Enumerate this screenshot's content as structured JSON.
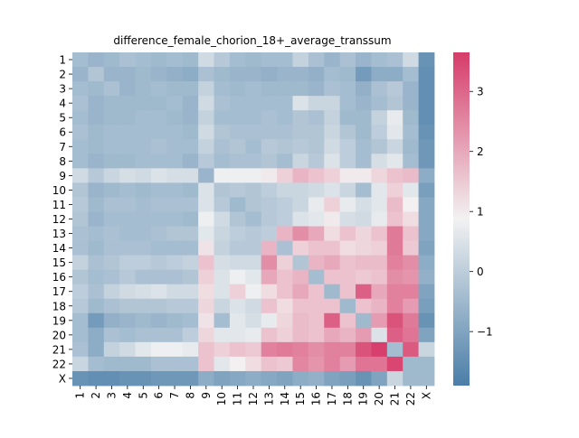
{
  "chart_data": {
    "type": "heatmap",
    "title": "difference_female_chorion_18+_average_transsum",
    "xlabel": "",
    "ylabel": "",
    "labels": [
      "1",
      "2",
      "3",
      "4",
      "5",
      "6",
      "7",
      "8",
      "9",
      "10",
      "11",
      "12",
      "13",
      "14",
      "15",
      "16",
      "17",
      "18",
      "19",
      "20",
      "21",
      "22",
      "X"
    ],
    "colorbar": {
      "min": -1.9,
      "max": 3.65,
      "ticks": [
        -1,
        0,
        1,
        2,
        3
      ],
      "tick_labels": [
        "−1",
        "0",
        "1",
        "2",
        "3"
      ],
      "colormap": "diverging",
      "low_color": "#4a7ea8",
      "mid_color": "#f2f2f2",
      "high_color": "#d63c6a"
    },
    "matrix": [
      [
        -0.4,
        -0.6,
        -0.5,
        -0.3,
        -0.4,
        -0.5,
        -0.4,
        -0.5,
        0.3,
        -0.1,
        -0.4,
        -0.5,
        -0.4,
        -0.4,
        0.1,
        -0.3,
        -0.6,
        -0.3,
        -0.6,
        -0.4,
        -0.3,
        0.3,
        -1.4
      ],
      [
        -0.6,
        -0.2,
        -0.6,
        -0.6,
        -0.5,
        -0.6,
        -0.7,
        -0.8,
        -0.3,
        -0.5,
        -0.6,
        -0.6,
        -0.7,
        -0.6,
        -0.6,
        -0.7,
        -0.4,
        -0.5,
        -1.2,
        -0.8,
        -0.8,
        -0.4,
        -1.5
      ],
      [
        -0.4,
        -0.5,
        -0.3,
        -0.6,
        -0.5,
        -0.4,
        -0.5,
        -0.5,
        0.1,
        -0.4,
        -0.5,
        -0.4,
        -0.5,
        -0.5,
        -0.5,
        -0.6,
        -0.3,
        -0.4,
        -0.7,
        -0.3,
        -0.1,
        -0.6,
        -1.5
      ],
      [
        -0.3,
        -0.6,
        -0.5,
        -0.5,
        -0.5,
        -0.5,
        -0.4,
        -0.6,
        0.3,
        -0.3,
        -0.4,
        -0.4,
        -0.4,
        -0.4,
        0.5,
        0.2,
        0.2,
        -0.4,
        -0.6,
        -0.4,
        -0.2,
        -0.6,
        -1.5
      ],
      [
        -0.4,
        -0.6,
        -0.5,
        -0.5,
        -0.4,
        -0.4,
        -0.5,
        -0.6,
        0.1,
        -0.4,
        -0.4,
        -0.4,
        -0.3,
        -0.4,
        -0.2,
        -0.3,
        0.1,
        -0.5,
        -0.5,
        0.1,
        0.7,
        -0.5,
        -1.5
      ],
      [
        -0.3,
        -0.5,
        -0.4,
        -0.4,
        -0.4,
        -0.4,
        -0.4,
        -0.5,
        0.3,
        -0.2,
        -0.3,
        -0.3,
        -0.3,
        -0.3,
        -0.2,
        -0.2,
        0.2,
        -0.2,
        -0.5,
        0.0,
        0.6,
        -0.4,
        -1.4
      ],
      [
        -0.4,
        -0.5,
        -0.4,
        -0.4,
        -0.4,
        -0.3,
        -0.4,
        -0.4,
        0.1,
        -0.3,
        -0.2,
        -0.4,
        -0.1,
        -0.2,
        -0.1,
        -0.2,
        0.3,
        0.0,
        -0.4,
        -0.2,
        0.2,
        -0.5,
        -1.3
      ],
      [
        -0.4,
        -0.6,
        -0.5,
        -0.5,
        -0.4,
        -0.4,
        -0.4,
        -0.6,
        -0.1,
        -0.4,
        -0.3,
        -0.3,
        -0.2,
        -0.4,
        0.2,
        -0.1,
        0.5,
        0.0,
        -0.4,
        0.4,
        0.6,
        -0.4,
        -1.3
      ],
      [
        0.3,
        -0.1,
        0.2,
        0.4,
        0.3,
        0.5,
        0.4,
        0.4,
        -0.6,
        0.8,
        0.8,
        0.8,
        1.0,
        1.4,
        1.8,
        1.6,
        1.4,
        1.0,
        1.0,
        1.3,
        1.6,
        1.7,
        -0.8
      ],
      [
        -0.2,
        -0.6,
        -0.5,
        -0.4,
        -0.5,
        -0.4,
        -0.4,
        -0.5,
        0.5,
        -0.2,
        -0.1,
        -0.2,
        0.0,
        0.2,
        0.2,
        0.3,
        0.5,
        0.2,
        -0.4,
        0.6,
        1.4,
        0.6,
        -1.1
      ],
      [
        -0.1,
        -0.5,
        -0.3,
        -0.3,
        -0.4,
        -0.3,
        -0.3,
        -0.3,
        0.5,
        -0.1,
        -0.5,
        -0.2,
        -0.1,
        0.0,
        0.2,
        0.7,
        1.4,
        0.7,
        0.4,
        0.6,
        1.7,
        0.9,
        -0.9
      ],
      [
        -0.2,
        -0.6,
        -0.4,
        -0.4,
        -0.4,
        -0.4,
        -0.4,
        -0.5,
        0.8,
        0.3,
        -0.2,
        -0.4,
        -0.1,
        0.0,
        0.5,
        0.6,
        1.0,
        0.4,
        0.3,
        0.7,
        1.6,
        1.2,
        -0.9
      ],
      [
        -0.3,
        -0.4,
        -0.3,
        -0.4,
        -0.4,
        -0.3,
        -0.2,
        -0.2,
        0.6,
        0.2,
        0.0,
        -0.1,
        0.0,
        1.8,
        2.4,
        2.0,
        1.2,
        1.6,
        1.3,
        1.6,
        2.7,
        1.6,
        -0.9
      ],
      [
        -0.3,
        -0.5,
        -0.3,
        -0.3,
        -0.3,
        -0.4,
        -0.4,
        -0.4,
        1.1,
        0.1,
        -0.1,
        -0.1,
        1.8,
        -0.3,
        1.4,
        1.6,
        1.6,
        1.2,
        1.3,
        1.4,
        2.7,
        1.5,
        -1.0
      ],
      [
        0.1,
        -0.3,
        -0.2,
        0.0,
        0.0,
        -0.1,
        0.0,
        0.1,
        1.6,
        0.4,
        0.3,
        0.3,
        2.4,
        1.4,
        -0.2,
        1.8,
        2.0,
        1.6,
        1.7,
        1.7,
        2.6,
        2.4,
        -0.8
      ],
      [
        -0.2,
        -0.4,
        -0.3,
        -0.1,
        -0.3,
        -0.3,
        -0.3,
        -0.2,
        1.4,
        0.5,
        0.8,
        0.6,
        2.0,
        1.6,
        1.8,
        -0.4,
        1.6,
        1.6,
        1.5,
        1.6,
        2.4,
        2.3,
        -0.7
      ],
      [
        0.0,
        -0.3,
        0.1,
        0.3,
        0.4,
        0.5,
        0.3,
        0.3,
        1.2,
        0.5,
        1.4,
        0.8,
        1.2,
        1.6,
        2.0,
        1.6,
        -0.5,
        1.6,
        3.1,
        2.0,
        2.6,
        2.6,
        -1.0
      ],
      [
        -0.1,
        -0.5,
        -0.3,
        -0.2,
        -0.2,
        -0.2,
        -0.1,
        -0.1,
        1.3,
        0.2,
        0.5,
        0.3,
        1.6,
        1.2,
        1.6,
        1.6,
        1.6,
        -0.5,
        1.6,
        1.8,
        2.6,
        2.2,
        -1.1
      ],
      [
        -0.4,
        -1.2,
        -0.7,
        -0.6,
        -0.5,
        -0.6,
        -0.5,
        -0.4,
        1.1,
        -0.4,
        0.6,
        0.4,
        0.7,
        1.3,
        1.7,
        1.6,
        3.1,
        1.6,
        -0.5,
        2.2,
        3.3,
        2.7,
        -1.4
      ],
      [
        -0.4,
        -0.8,
        -0.3,
        -0.4,
        -0.3,
        -0.3,
        -0.3,
        0.0,
        1.3,
        0.6,
        0.6,
        0.7,
        1.6,
        1.4,
        1.7,
        1.6,
        2.0,
        1.8,
        2.2,
        0.5,
        3.1,
        2.8,
        -1.0
      ],
      [
        -0.3,
        -0.8,
        0.1,
        0.3,
        0.6,
        0.8,
        0.8,
        0.7,
        1.6,
        1.4,
        1.6,
        1.5,
        2.6,
        2.7,
        2.6,
        2.4,
        2.6,
        2.6,
        3.3,
        3.6,
        -0.4,
        3.2,
        0.2
      ],
      [
        0.2,
        -0.4,
        -0.5,
        -0.5,
        -0.5,
        -0.3,
        -0.3,
        -0.3,
        1.6,
        0.6,
        0.9,
        1.2,
        1.6,
        1.5,
        2.5,
        2.3,
        2.6,
        2.2,
        2.8,
        2.8,
        3.5,
        -0.5,
        -0.5
      ],
      [
        -1.4,
        -1.5,
        -1.5,
        -1.4,
        -1.4,
        -1.3,
        -1.3,
        -1.3,
        -0.8,
        -1.0,
        -0.9,
        -0.8,
        -0.9,
        -1.0,
        -0.8,
        -0.7,
        -1.0,
        -1.1,
        -1.4,
        -1.0,
        0.2,
        -0.5,
        -0.5
      ]
    ]
  }
}
